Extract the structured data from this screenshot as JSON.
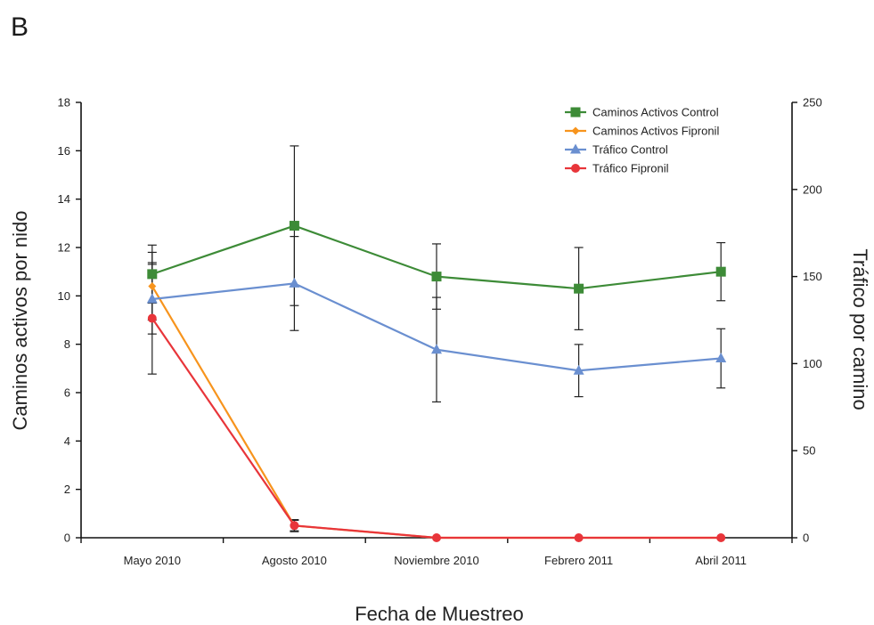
{
  "panel_label": "B",
  "chart_data": {
    "type": "line",
    "categories": [
      "Mayo 2010",
      "Agosto 2010",
      "Noviembre 2010",
      "Febrero 2011",
      "Abril 2011"
    ],
    "xlabel": "Fecha de Muestreo",
    "ylabel": "Caminos activos por nido",
    "y2label": "Tráfico por camino",
    "ylim": [
      0,
      18
    ],
    "y2lim": [
      0,
      250
    ],
    "yticks": [
      0,
      2,
      4,
      6,
      8,
      10,
      12,
      14,
      16,
      18
    ],
    "y2ticks": [
      0,
      50,
      100,
      150,
      200,
      250
    ],
    "legend_position": "top-right",
    "grid": false,
    "series": [
      {
        "name": "Caminos Activos Control",
        "axis": "left",
        "color": "#3d8b37",
        "marker": "square",
        "values": [
          10.9,
          12.9,
          10.8,
          10.3,
          11.0
        ],
        "error": [
          1.2,
          3.3,
          1.35,
          1.7,
          1.2
        ]
      },
      {
        "name": "Caminos Activos Fipronil",
        "axis": "left",
        "color": "#f7941d",
        "marker": "diamond",
        "values": [
          10.4,
          0.5,
          0,
          0,
          0
        ],
        "error": [
          1.4,
          0.25,
          0,
          0,
          0
        ]
      },
      {
        "name": "Tráfico Control",
        "axis": "right",
        "color": "#6a8fd0",
        "marker": "triangle",
        "values": [
          137,
          146,
          108,
          96,
          103
        ],
        "error": [
          20,
          27,
          30,
          15,
          17
        ]
      },
      {
        "name": "Tráfico Fipronil",
        "axis": "right",
        "color": "#e8353a",
        "marker": "circle",
        "values": [
          126,
          7,
          0,
          0,
          0
        ],
        "error": [
          32,
          3,
          0,
          0,
          0
        ]
      }
    ]
  }
}
